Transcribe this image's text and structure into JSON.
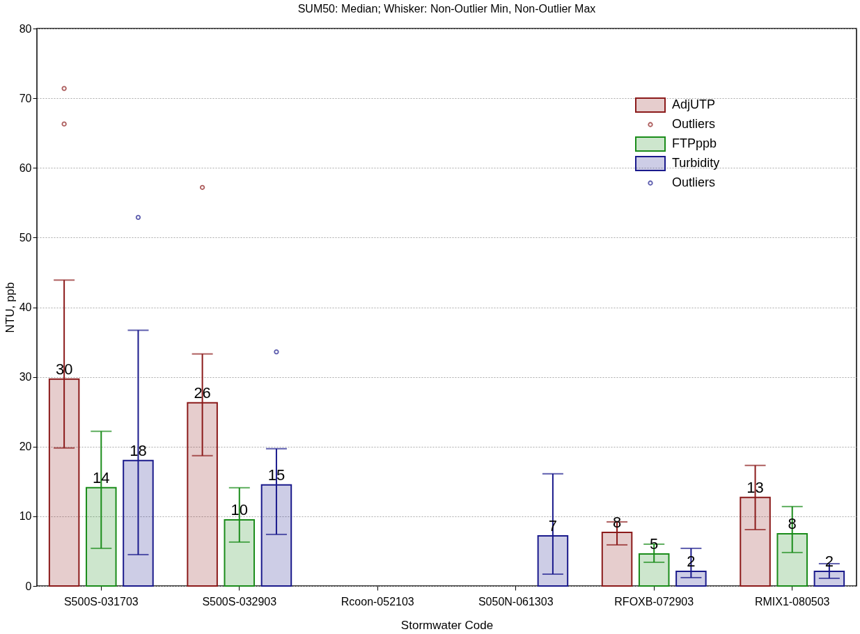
{
  "chart_data": {
    "type": "bar",
    "title": "SUM50:  Median;  Whisker: Non-Outlier Min, Non-Outlier Max",
    "xlabel": "Stormwater Code",
    "ylabel": "NTU, ppb",
    "categories": [
      "S500S-031703",
      "S500S-032903",
      "Rcoon-052103",
      "S050N-061303",
      "RFOXB-072903",
      "RMIX1-080503"
    ],
    "series": [
      {
        "name": "AdjUTP",
        "color": "#8b1a1a",
        "values": [
          29.7,
          26.3,
          null,
          null,
          7.7,
          12.7
        ],
        "errors": [
          [
            19.8,
            43.9
          ],
          [
            18.7,
            33.3
          ],
          null,
          null,
          [
            5.9,
            9.2
          ],
          [
            8.1,
            17.3
          ]
        ],
        "value_labels": [
          "30",
          "26",
          null,
          null,
          "8",
          "13"
        ]
      },
      {
        "name": "Outliers",
        "type": "scatter",
        "color": "#8b1a1a",
        "x": [
          "S500S-031703",
          "S500S-031703",
          "S500S-032903"
        ],
        "values": [
          71.4,
          66.3,
          57.2
        ]
      },
      {
        "name": "FTPppb",
        "color": "#1a8c1a",
        "values": [
          14.1,
          9.5,
          null,
          null,
          4.6,
          7.5
        ],
        "errors": [
          [
            5.4,
            22.2
          ],
          [
            6.3,
            14.1
          ],
          null,
          null,
          [
            3.4,
            6.0
          ],
          [
            4.8,
            11.4
          ]
        ],
        "value_labels": [
          "14",
          "10",
          null,
          null,
          "5",
          "8"
        ]
      },
      {
        "name": "Turbidity",
        "color": "#1a1a8c",
        "values": [
          18.0,
          14.5,
          null,
          7.2,
          2.1,
          2.1
        ],
        "errors": [
          [
            4.5,
            36.7
          ],
          [
            7.4,
            19.7
          ],
          null,
          [
            1.7,
            16.1
          ],
          [
            1.2,
            5.4
          ],
          [
            1.1,
            3.2
          ]
        ],
        "value_labels": [
          "18",
          "15",
          null,
          "7",
          "2",
          "2"
        ]
      },
      {
        "name": "Outliers",
        "type": "scatter",
        "color": "#1a1a8c",
        "x": [
          "S500S-031703",
          "S500S-032903"
        ],
        "values": [
          52.9,
          33.6
        ]
      }
    ],
    "ylim": [
      0,
      80
    ],
    "yticks": [
      0,
      10,
      20,
      30,
      40,
      50,
      60,
      70,
      80
    ],
    "grid": "y",
    "legend": "top right"
  }
}
